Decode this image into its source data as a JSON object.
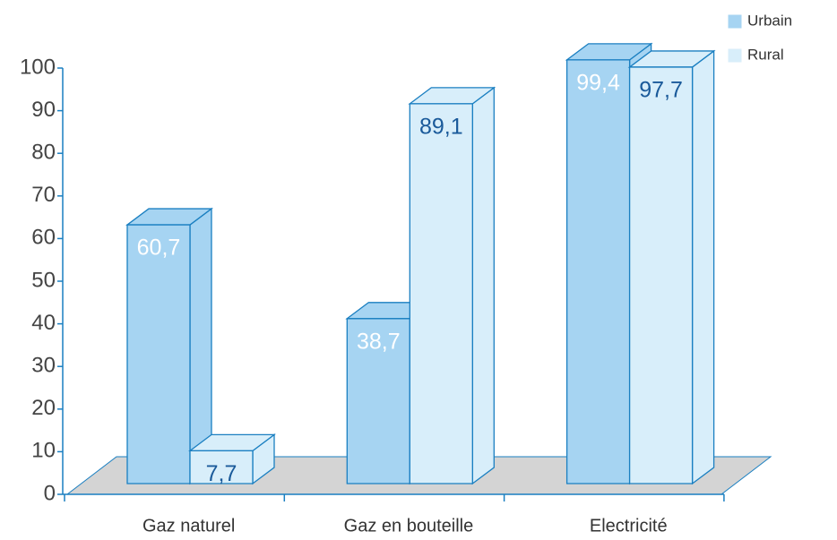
{
  "chart_data": {
    "type": "bar3d",
    "categories": [
      "Gaz naturel",
      "Gaz en bouteille",
      "Electricité"
    ],
    "series": [
      {
        "name": "Urbain",
        "color": "#a6d4f2",
        "values": [
          60.7,
          38.7,
          99.4
        ],
        "value_labels": [
          "60,7",
          "38,7",
          "99,4"
        ]
      },
      {
        "name": "Rural",
        "color": "#d8eefa",
        "values": [
          7.7,
          89.1,
          97.7
        ],
        "value_labels": [
          "7,7",
          "89,1",
          "97,7"
        ]
      }
    ],
    "ylim": [
      0,
      100
    ],
    "yticks": [
      0,
      10,
      20,
      30,
      40,
      50,
      60,
      70,
      80,
      90,
      100
    ],
    "legend": "top-right"
  }
}
